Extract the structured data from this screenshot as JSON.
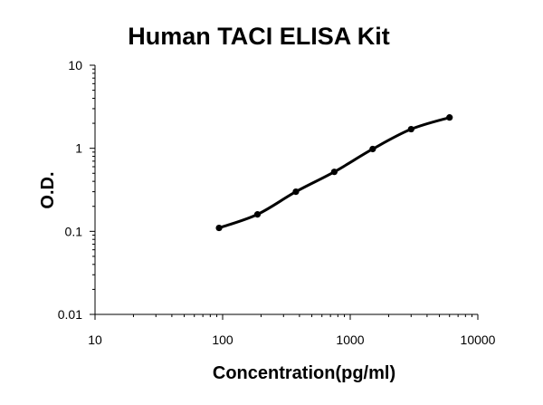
{
  "chart_data": {
    "type": "scatter",
    "title": "Human TACI ELISA Kit",
    "xlabel": "Concentration(pg/ml)",
    "ylabel": "O.D.",
    "x_scale": "log",
    "y_scale": "log",
    "xlim": [
      10,
      10000
    ],
    "ylim": [
      0.01,
      10
    ],
    "x_ticks": [
      "10",
      "100",
      "1000",
      "10000"
    ],
    "y_ticks": [
      "0.01",
      "0.1",
      "1",
      "10"
    ],
    "grid": false,
    "legend": "none",
    "series": [
      {
        "x": [
          93.75,
          187.5,
          375,
          750,
          1500,
          3000,
          6000
        ],
        "y": [
          0.11,
          0.16,
          0.3,
          0.52,
          0.98,
          1.7,
          2.35
        ],
        "style": "markers-with-smooth-fit-line"
      }
    ],
    "colors": {
      "line": "#000000",
      "markers": "#000000",
      "axes": "#000000"
    }
  }
}
